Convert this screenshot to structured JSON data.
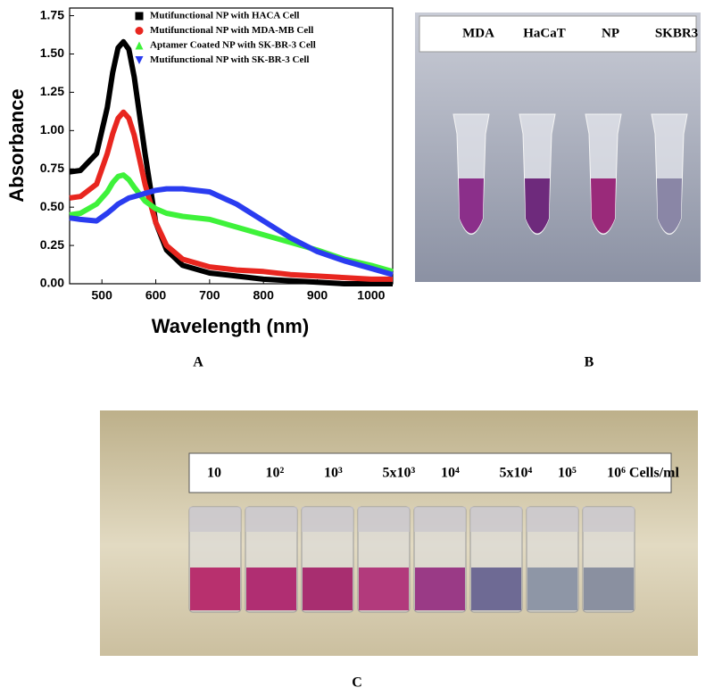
{
  "chart_data": {
    "type": "line",
    "x_label": "Wavelength (nm)",
    "y_label": "Absorbance",
    "x": [
      440,
      460,
      490,
      510,
      520,
      530,
      540,
      550,
      560,
      580,
      600,
      620,
      650,
      700,
      750,
      800,
      850,
      900,
      950,
      1000,
      1040
    ],
    "series": [
      {
        "name": "Mutifunctional NP with HACA Cell",
        "color": "#000000",
        "marker": "square",
        "values": [
          0.73,
          0.74,
          0.85,
          1.15,
          1.38,
          1.54,
          1.58,
          1.53,
          1.35,
          0.85,
          0.4,
          0.22,
          0.12,
          0.07,
          0.05,
          0.03,
          0.02,
          0.01,
          0.0,
          0.0,
          0.0
        ]
      },
      {
        "name": "Mutifunctional NP with MDA-MB Cell",
        "color": "#e8261f",
        "marker": "circle",
        "values": [
          0.56,
          0.57,
          0.65,
          0.85,
          0.98,
          1.08,
          1.12,
          1.08,
          0.97,
          0.65,
          0.4,
          0.25,
          0.16,
          0.11,
          0.09,
          0.08,
          0.06,
          0.05,
          0.04,
          0.03,
          0.03
        ]
      },
      {
        "name": "Aptamer Coated NP with SK-BR-3 Cell",
        "color": "#3ef23a",
        "marker": "triangle-up",
        "values": [
          0.45,
          0.46,
          0.52,
          0.6,
          0.66,
          0.7,
          0.71,
          0.68,
          0.63,
          0.54,
          0.49,
          0.46,
          0.44,
          0.42,
          0.37,
          0.32,
          0.27,
          0.22,
          0.16,
          0.12,
          0.08
        ]
      },
      {
        "name": "Mutifunctional NP with SK-BR-3 Cell",
        "color": "#2a3cf0",
        "marker": "triangle-down",
        "values": [
          0.43,
          0.42,
          0.41,
          0.46,
          0.49,
          0.52,
          0.54,
          0.56,
          0.57,
          0.59,
          0.61,
          0.62,
          0.62,
          0.6,
          0.52,
          0.41,
          0.3,
          0.21,
          0.15,
          0.1,
          0.06
        ]
      }
    ],
    "xlim": [
      440,
      1040
    ],
    "xticks": [
      500,
      600,
      700,
      800,
      900,
      1000
    ],
    "ylim": [
      0,
      1.8
    ],
    "yticks": [
      {
        "value": 0,
        "label": "0.00"
      },
      {
        "value": 0.25,
        "label": "0.25"
      },
      {
        "value": 0.5,
        "label": "0.50"
      },
      {
        "value": 0.75,
        "label": "0.75"
      },
      {
        "value": 1,
        "label": "1.00"
      },
      {
        "value": 1.25,
        "label": "1.25"
      },
      {
        "value": 1.5,
        "label": "1.50"
      },
      {
        "value": 1.75,
        "label": "1.75"
      }
    ],
    "grid": false,
    "legend": "top-left"
  },
  "panels": {
    "a": {
      "label": "A"
    },
    "b": {
      "label": "B",
      "tubes": [
        "MDA",
        "HaCaT",
        "NP",
        "SKBR3"
      ]
    },
    "c": {
      "label": "C",
      "concentrations": [
        "10",
        "10²",
        "10³",
        "5x10³",
        "10⁴",
        "5x10⁴",
        "10⁵",
        "10⁶ Cells/ml"
      ]
    }
  }
}
